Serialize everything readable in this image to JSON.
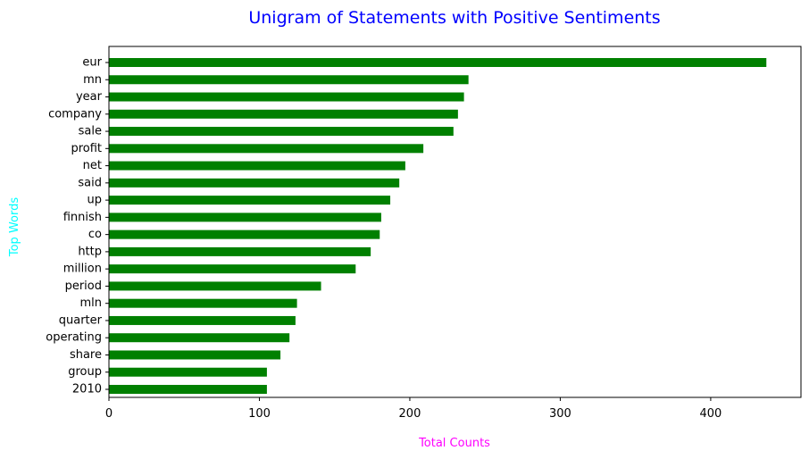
{
  "chart_data": {
    "type": "bar",
    "orientation": "horizontal",
    "title": "Unigram of Statements with Positive Sentiments",
    "xlabel": "Total Counts",
    "ylabel": "Top Words",
    "categories": [
      "eur",
      "mn",
      "year",
      "company",
      "sale",
      "profit",
      "net",
      "said",
      "up",
      "finnish",
      "co",
      "http",
      "million",
      "period",
      "mln",
      "quarter",
      "operating",
      "share",
      "group",
      "2010"
    ],
    "values": [
      437,
      239,
      236,
      232,
      229,
      209,
      197,
      193,
      187,
      181,
      180,
      174,
      164,
      141,
      125,
      124,
      120,
      114,
      105,
      105
    ],
    "xlim": [
      0,
      460
    ],
    "xticks": [
      0,
      100,
      200,
      300,
      400
    ],
    "grid": false,
    "colors": {
      "bar": "#008000",
      "title": "#0000ff",
      "xlabel": "#ff00ff",
      "ylabel": "#00ffff"
    }
  }
}
